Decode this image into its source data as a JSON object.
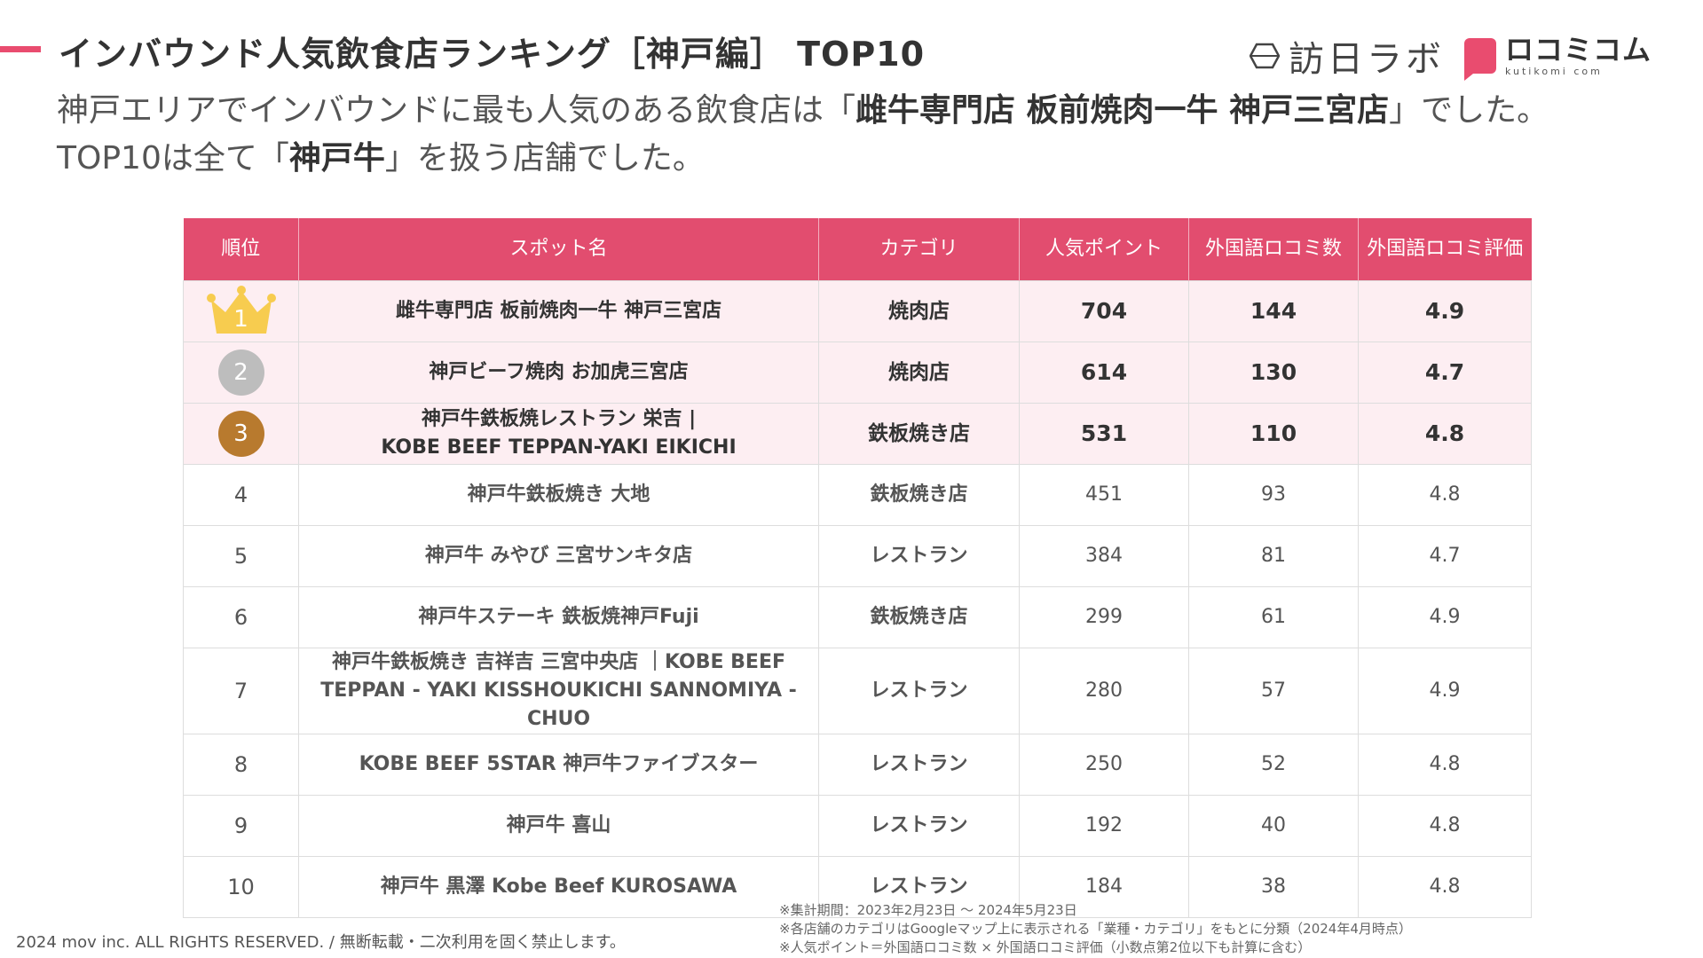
{
  "header": {
    "title": "インバウンド人気飲食店ランキング［神戸編］ TOP10",
    "logo_left": "訪日ラボ",
    "logo_right_name": "ロコミコム",
    "logo_right_sub": "kutikomi com"
  },
  "subtitle": {
    "part1": "神戸エリアでインバウンドに最も人気のある飲食店は「",
    "bold1": "雌牛専門店 板前焼肉一牛 神戸三宮店",
    "part2": "」でした。TOP10は全て「",
    "bold2": "神戸牛",
    "part3": "」を扱う店舗でした。"
  },
  "table": {
    "headers": {
      "rank": "順位",
      "name": "スポット名",
      "category": "カテゴリ",
      "points": "人気ポイント",
      "reviews": "外国語ロコミ数",
      "rating": "外国語ロコミ評価"
    },
    "rows": [
      {
        "rank": "1",
        "name": "雌牛専門店 板前焼肉一牛 神戸三宮店",
        "name2": "",
        "category": "焼肉店",
        "points": "704",
        "reviews": "144",
        "rating": "4.9"
      },
      {
        "rank": "2",
        "name": "神戸ビーフ焼肉 お加虎三宮店",
        "name2": "",
        "category": "焼肉店",
        "points": "614",
        "reviews": "130",
        "rating": "4.7"
      },
      {
        "rank": "3",
        "name": "神戸牛鉄板焼レストラン 栄吉 |",
        "name2": "KOBE BEEF TEPPAN-YAKI EIKICHI",
        "category": "鉄板焼き店",
        "points": "531",
        "reviews": "110",
        "rating": "4.8"
      },
      {
        "rank": "4",
        "name": "神戸牛鉄板焼き 大地",
        "name2": "",
        "category": "鉄板焼き店",
        "points": "451",
        "reviews": "93",
        "rating": "4.8"
      },
      {
        "rank": "5",
        "name": "神戸牛 みやび 三宮サンキタ店",
        "name2": "",
        "category": "レストラン",
        "points": "384",
        "reviews": "81",
        "rating": "4.7"
      },
      {
        "rank": "6",
        "name": "神戸牛ステーキ 鉄板焼神戸Fuji",
        "name2": "",
        "category": "鉄板焼き店",
        "points": "299",
        "reviews": "61",
        "rating": "4.9"
      },
      {
        "rank": "7",
        "name": "神戸牛鉄板焼き 吉祥吉 三宮中央店 ｜KOBE BEEF",
        "name2": "TEPPAN - YAKI KISSHOUKICHI SANNOMIYA - CHUO",
        "category": "レストラン",
        "points": "280",
        "reviews": "57",
        "rating": "4.9"
      },
      {
        "rank": "8",
        "name": "KOBE BEEF 5STAR 神戸牛ファイブスター",
        "name2": "",
        "category": "レストラン",
        "points": "250",
        "reviews": "52",
        "rating": "4.8"
      },
      {
        "rank": "9",
        "name": "神戸牛 喜山",
        "name2": "",
        "category": "レストラン",
        "points": "192",
        "reviews": "40",
        "rating": "4.8"
      },
      {
        "rank": "10",
        "name": "神戸牛 黒澤 Kobe Beef KUROSAWA",
        "name2": "",
        "category": "レストラン",
        "points": "184",
        "reviews": "38",
        "rating": "4.8"
      }
    ]
  },
  "colors": {
    "accent": "#e24d6f",
    "gold": "#f7cc4f",
    "silver": "#bdbdbd",
    "bronze": "#b87a2e"
  },
  "footer": {
    "copyright": "2024 mov inc. ALL RIGHTS RESERVED. / 無断転載・二次利用を固く禁止します。",
    "note1": "※集計期間：2023年2月23日 〜 2024年5月23日",
    "note2": "※各店舗のカテゴリはGoogleマップ上に表示される「業種・カテゴリ」をもとに分類（2024年4月時点）",
    "note3": "※人気ポイント＝外国語ロコミ数 × 外国語ロコミ評価（小数点第2位以下も計算に含む）"
  }
}
